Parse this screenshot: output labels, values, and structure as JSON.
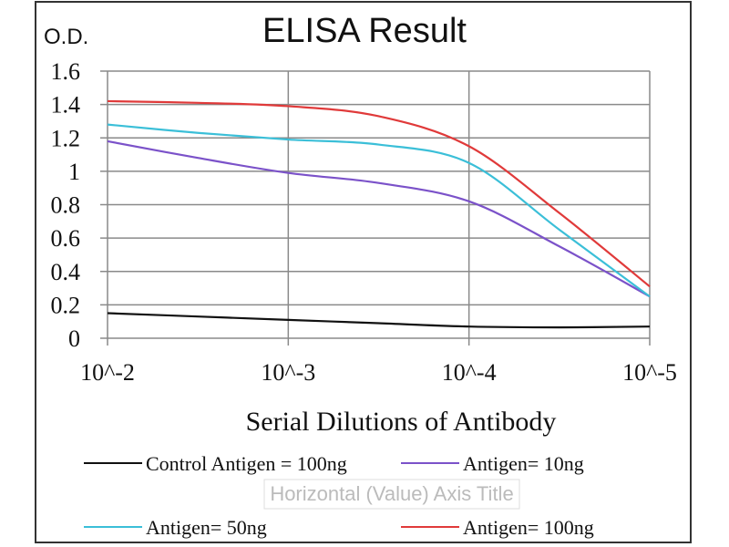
{
  "chart_data": {
    "type": "line",
    "title": "ELISA Result",
    "ylabel": "O.D.",
    "xlabel": "Serial Dilutions  of Antibody",
    "axis_title_placeholder": "Horizontal (Value) Axis Title",
    "x_tick_labels": [
      "10^-2",
      "10^-3",
      "10^-4",
      "10^-5"
    ],
    "x": [
      0,
      0.5,
      1,
      1.5,
      2,
      2.5,
      3
    ],
    "y_ticks": [
      "0",
      "0.2",
      "0.4",
      "0.6",
      "0.8",
      "1",
      "1.2",
      "1.4",
      "1.6"
    ],
    "ylim": [
      0,
      1.6
    ],
    "grid": true,
    "legend_position": "bottom",
    "series": [
      {
        "name": "Control Antigen = 100ng",
        "color": "#111111",
        "values": [
          0.15,
          0.13,
          0.11,
          0.09,
          0.07,
          0.065,
          0.07
        ]
      },
      {
        "name": "Antigen= 10ng",
        "color": "#7b52c9",
        "values": [
          1.18,
          1.08,
          0.99,
          0.93,
          0.82,
          0.55,
          0.25
        ]
      },
      {
        "name": "Antigen= 50ng",
        "color": "#3bbfd8",
        "values": [
          1.28,
          1.23,
          1.19,
          1.16,
          1.05,
          0.65,
          0.25
        ]
      },
      {
        "name": "Antigen= 100ng",
        "color": "#e03a3a",
        "values": [
          1.42,
          1.41,
          1.39,
          1.33,
          1.15,
          0.75,
          0.31
        ]
      }
    ]
  }
}
